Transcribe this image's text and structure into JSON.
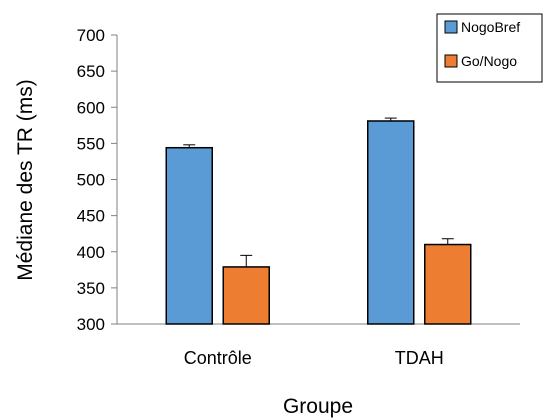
{
  "chart_data": {
    "type": "bar",
    "title": "",
    "xlabel": "Groupe",
    "ylabel": "Médiane des TR (ms)",
    "categories": [
      "Contrôle",
      "TDAH"
    ],
    "ylim": [
      300,
      700
    ],
    "yticks": [
      300,
      350,
      400,
      450,
      500,
      550,
      600,
      650,
      700
    ],
    "grid": false,
    "legend_position": "top-right",
    "series": [
      {
        "name": "NogoBref",
        "color": "#5b9bd5",
        "values": [
          544,
          581
        ],
        "errors": [
          4,
          4
        ]
      },
      {
        "name": "Go/Nogo",
        "color": "#ed7d31",
        "values": [
          379,
          410
        ],
        "errors": [
          16,
          8
        ]
      }
    ]
  }
}
